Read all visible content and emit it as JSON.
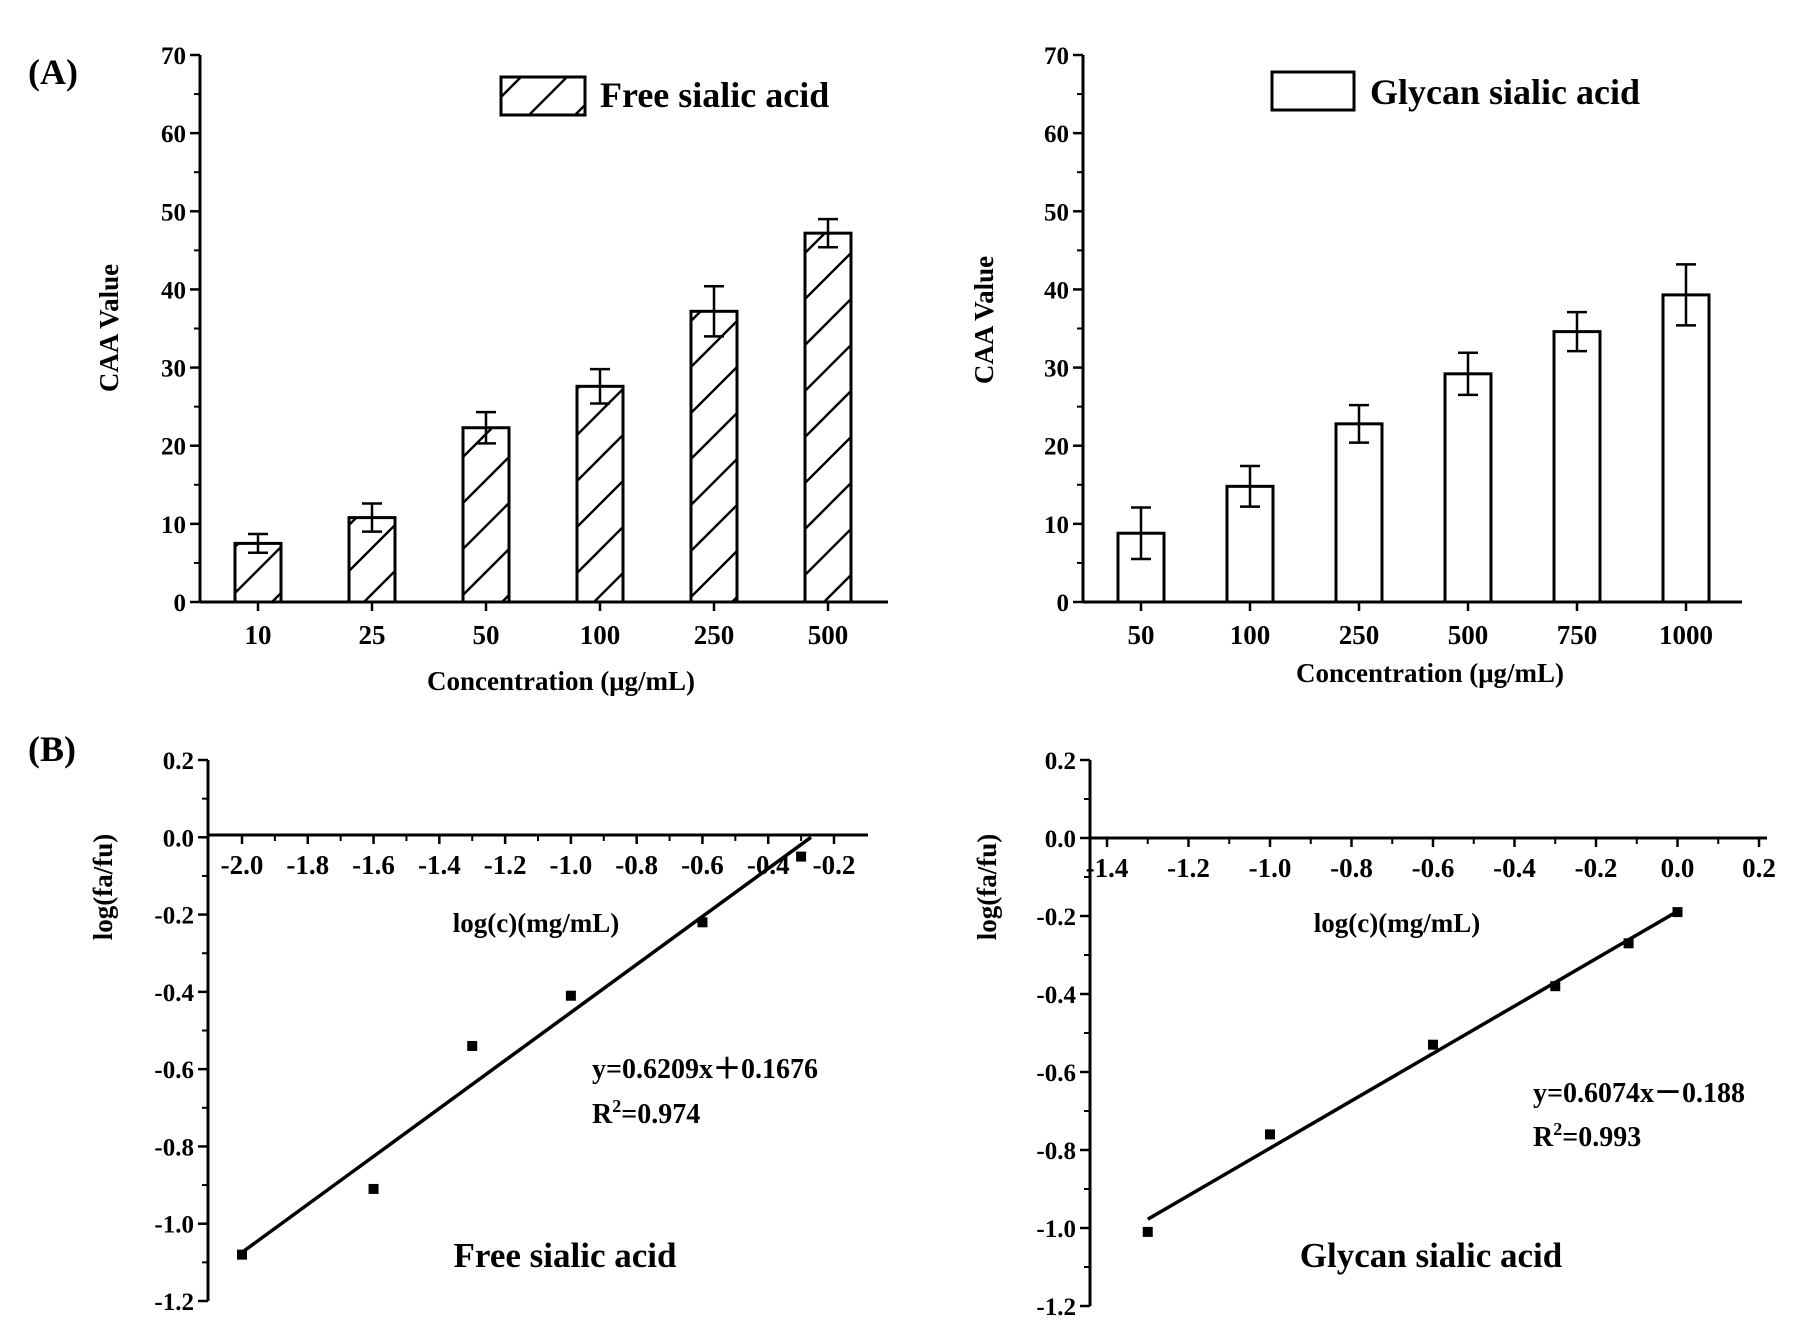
{
  "panel_labels": {
    "a": "(A)",
    "b": "(B)"
  },
  "colors": {
    "ink": "#000000",
    "paper": "#ffffff"
  },
  "chart_data": [
    {
      "id": "a-free",
      "type": "bar",
      "pattern": "hatched",
      "legend": "Free sialic acid",
      "categories": [
        "10",
        "25",
        "50",
        "100",
        "250",
        "500"
      ],
      "values": [
        7.5,
        10.8,
        22.3,
        27.6,
        37.2,
        47.2
      ],
      "errors": [
        1.2,
        1.8,
        2.0,
        2.2,
        3.2,
        1.8
      ],
      "xlabel": "Concentration (μg/mL)",
      "ylabel": "CAA Value",
      "ylim": [
        0,
        70
      ],
      "yticks": [
        "0",
        "10",
        "20",
        "30",
        "40",
        "50",
        "60",
        "70"
      ]
    },
    {
      "id": "a-glycan",
      "type": "bar",
      "pattern": "open",
      "legend": "Glycan sialic acid",
      "categories": [
        "50",
        "100",
        "250",
        "500",
        "750",
        "1000"
      ],
      "values": [
        8.8,
        14.8,
        22.8,
        29.2,
        34.6,
        39.3
      ],
      "errors": [
        3.3,
        2.6,
        2.4,
        2.7,
        2.5,
        3.9
      ],
      "xlabel": "Concentration (μg/mL)",
      "ylabel": "CAA Value",
      "ylim": [
        0,
        70
      ],
      "yticks": [
        "0",
        "10",
        "20",
        "30",
        "40",
        "50",
        "60",
        "70"
      ]
    },
    {
      "id": "b-free",
      "type": "scatter",
      "title": "Free sialic acid",
      "x": [
        -2.0,
        -1.6,
        -1.3,
        -1.0,
        -0.6,
        -0.3
      ],
      "y": [
        -1.08,
        -0.91,
        -0.54,
        -0.41,
        -0.22,
        -0.05
      ],
      "fit": {
        "slope": 0.6209,
        "intercept": 0.1676,
        "x_range": [
          -2.0,
          -0.27
        ]
      },
      "equation": "y=0.6209x＋0.1676",
      "r2_prefix": "R",
      "r2_exponent": "2",
      "r2_value": "=0.974",
      "xlabel": "log(c)(mg/mL)",
      "ylabel": "log(fa/fu)",
      "xlim": [
        -2.1,
        -0.15
      ],
      "ylim": [
        -1.2,
        0.2
      ],
      "xticks": [
        "-2.0",
        "-1.8",
        "-1.6",
        "-1.4",
        "-1.2",
        "-1.0",
        "-0.8",
        "-0.6",
        "-0.4",
        "-0.2"
      ],
      "yticks": [
        "0.2",
        "0.0",
        "-0.2",
        "-0.4",
        "-0.6",
        "-0.8",
        "-1.0",
        "-1.2"
      ]
    },
    {
      "id": "b-glycan",
      "type": "scatter",
      "title": "Glycan sialic acid",
      "x": [
        -1.3,
        -1.0,
        -0.6,
        -0.3,
        -0.12,
        0.0
      ],
      "y": [
        -1.01,
        -0.76,
        -0.53,
        -0.38,
        -0.27,
        -0.19
      ],
      "fit": {
        "slope": 0.6074,
        "intercept": -0.188,
        "x_range": [
          -1.3,
          0.0
        ]
      },
      "equation": "y=0.6074x－0.188",
      "r2_prefix": "R",
      "r2_exponent": "2",
      "r2_value": "=0.993",
      "xlabel": "log(c)(mg/mL)",
      "ylabel": "log(fa/fu)",
      "xlim": [
        -1.5,
        0.2
      ],
      "ylim": [
        -1.2,
        0.2
      ],
      "xticks": [
        "-1.4",
        "-1.2",
        "-1.0",
        "-0.8",
        "-0.6",
        "-0.4",
        "-0.2",
        "0.0",
        "0.2"
      ],
      "yticks": [
        "0.2",
        "0.0",
        "-0.2",
        "-0.4",
        "-0.6",
        "-0.8",
        "-1.0",
        "-1.2"
      ]
    }
  ]
}
